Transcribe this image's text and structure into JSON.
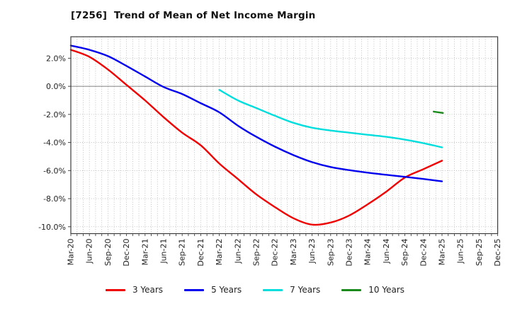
{
  "title": "[7256]  Trend of Mean of Net Income Margin",
  "chart_data": {
    "type": "line",
    "title": "[7256]  Trend of Mean of Net Income Margin",
    "categories": [
      "Mar-20",
      "Jun-20",
      "Sep-20",
      "Dec-20",
      "Mar-21",
      "Jun-21",
      "Sep-21",
      "Dec-21",
      "Mar-22",
      "Jun-22",
      "Sep-22",
      "Dec-22",
      "Mar-23",
      "Jun-23",
      "Sep-23",
      "Dec-23",
      "Mar-24",
      "Jun-24",
      "Sep-24",
      "Dec-24",
      "Mar-25",
      "Jun-25",
      "Sep-25",
      "Dec-25"
    ],
    "y_unit": "%",
    "ylim": [
      -10.49,
      3.53
    ],
    "yticks": [
      {
        "value": 2,
        "label": "2.0%"
      },
      {
        "value": 0,
        "label": "0.0%"
      },
      {
        "value": -2,
        "label": "-2.0%"
      },
      {
        "value": -4,
        "label": "-4.0%"
      },
      {
        "value": -6,
        "label": "-6.0%"
      },
      {
        "value": -8,
        "label": "-8.0%"
      },
      {
        "value": -10,
        "label": "-10.0%"
      }
    ],
    "grid": {
      "vertical": "monthly-dotted",
      "horizontal": "2pct-dotted",
      "zero_line": "solid"
    },
    "legend_position": "bottom-center",
    "series": [
      {
        "name": "3 Years",
        "color": "#ee0000",
        "x_start": 0,
        "values": [
          2.6,
          2.1,
          1.2,
          0.1,
          -1.0,
          -2.2,
          -3.3,
          -4.2,
          -5.5,
          -6.6,
          -7.7,
          -8.6,
          -9.4,
          -9.85,
          -9.7,
          -9.2,
          -8.4,
          -7.5,
          -6.5,
          -5.9,
          -5.3
        ]
      },
      {
        "name": "5 Years",
        "color": "#0000ee",
        "x_start": 0,
        "values": [
          2.9,
          2.6,
          2.15,
          1.45,
          0.7,
          -0.05,
          -0.55,
          -1.2,
          -1.85,
          -2.8,
          -3.6,
          -4.3,
          -4.9,
          -5.4,
          -5.75,
          -5.97,
          -6.15,
          -6.3,
          -6.45,
          -6.6,
          -6.77
        ]
      },
      {
        "name": "7 Years",
        "color": "#00dddd",
        "x_start": 8,
        "values": [
          -0.25,
          -1.0,
          -1.55,
          -2.1,
          -2.6,
          -2.95,
          -3.15,
          -3.3,
          -3.45,
          -3.6,
          -3.8,
          -4.05,
          -4.35
        ]
      },
      {
        "name": "10 Years",
        "color": "#1a8a1a",
        "x": [
          19.55,
          20.05
        ],
        "values": [
          -1.8,
          -1.9
        ]
      }
    ]
  },
  "legend": {
    "items": [
      "3 Years",
      "5 Years",
      "7 Years",
      "10 Years"
    ]
  }
}
